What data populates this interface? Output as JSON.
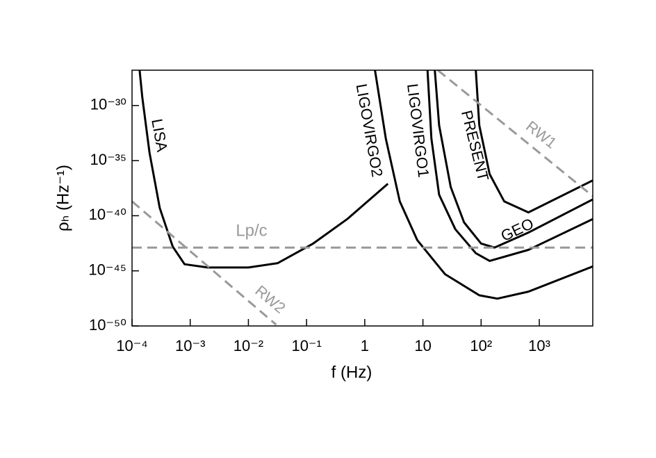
{
  "chart_data": {
    "type": "line",
    "xlabel": "f (Hz)",
    "ylabel": "ρₕ (Hz⁻¹)",
    "xscale": "log",
    "yscale": "log",
    "xlim": [
      0.0001,
      8300
    ],
    "ylim": [
      1e-50,
      1.6e-27
    ],
    "xticks": [
      {
        "value": 0.0001,
        "label": "10⁻⁴"
      },
      {
        "value": 0.001,
        "label": "10⁻³"
      },
      {
        "value": 0.01,
        "label": "10⁻²"
      },
      {
        "value": 0.1,
        "label": "10⁻¹"
      },
      1,
      10,
      {
        "value": 100,
        "label": "10²"
      },
      {
        "value": 1000,
        "label": "10³"
      }
    ],
    "yticks": [
      {
        "value": 1e-50,
        "label": "10⁻⁵⁰"
      },
      {
        "value": 1e-45,
        "label": "10⁻⁴⁵"
      },
      {
        "value": 1e-40,
        "label": "10⁻⁴⁰"
      },
      {
        "value": 1e-35,
        "label": "10⁻³⁵"
      },
      {
        "value": 1e-30,
        "label": "10⁻³⁰"
      }
    ],
    "grid": false,
    "series": [
      {
        "name": "LISA",
        "color": "#000000",
        "dashed": false,
        "x": [
          0.000135,
          0.00015,
          0.0002,
          0.0003,
          0.0005,
          0.0008,
          0.002,
          0.01,
          0.032,
          0.13,
          0.5,
          2.5
        ],
        "values": [
          1.6e-27,
          6e-30,
          5e-35,
          5e-40,
          1.6e-43,
          4e-45,
          2e-45,
          2e-45,
          5e-45,
          3e-43,
          5e-41,
          8e-38
        ]
      },
      {
        "name": "LIGOVIRGO2",
        "color": "#000000",
        "dashed": false,
        "x": [
          1.5,
          2.3,
          4,
          8,
          24,
          93,
          190,
          650,
          8300
        ],
        "values": [
          1.6e-27,
          1e-33,
          2e-39,
          6e-43,
          5e-46,
          6e-48,
          3e-48,
          1.3e-47,
          2.5e-45
        ]
      },
      {
        "name": "LIGOVIRGO1",
        "color": "#000000",
        "dashed": false,
        "x": [
          12,
          14,
          19,
          36,
          81,
          140,
          650,
          8300
        ],
        "values": [
          1.6e-27,
          1e-33,
          8e-39,
          6e-42,
          4e-44,
          8e-45,
          8e-44,
          5e-41
        ]
      },
      {
        "name": "GEO",
        "color": "#000000",
        "dashed": false,
        "x": [
          16,
          19,
          30,
          51,
          100,
          170,
          650,
          8300
        ],
        "values": [
          1.6e-27,
          1.6e-32,
          4e-38,
          2.5e-41,
          3e-43,
          1.3e-43,
          3e-42,
          3e-39
        ]
      },
      {
        "name": "PRESENT",
        "color": "#000000",
        "dashed": false,
        "x": [
          81,
          93,
          140,
          250,
          650,
          8300
        ],
        "values": [
          1.6e-27,
          1.6e-32,
          6e-37,
          2e-39,
          2e-40,
          1.6e-37
        ]
      },
      {
        "name": "RW1",
        "color": "#999999",
        "dashed": true,
        "x": [
          18,
          8300
        ],
        "values": [
          1.6e-27,
          6e-39
        ]
      },
      {
        "name": "RW2",
        "color": "#999999",
        "dashed": true,
        "x": [
          0.0001,
          0.03
        ],
        "values": [
          2e-39,
          1.3e-50
        ]
      },
      {
        "name": "Lp/c",
        "color": "#999999",
        "dashed": true,
        "x": [
          0.0001,
          8300
        ],
        "values": [
          1.3e-43,
          1.3e-43
        ]
      }
    ]
  }
}
